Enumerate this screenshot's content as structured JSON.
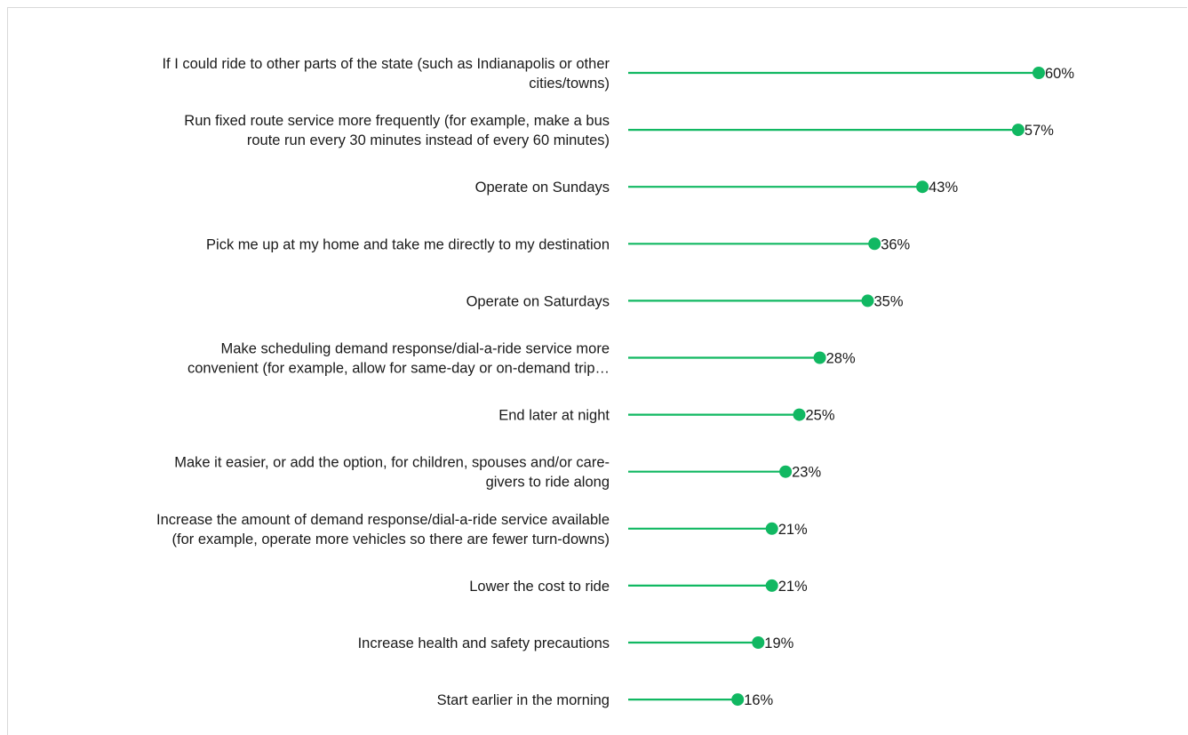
{
  "colors": {
    "accent": "#11b862",
    "text": "#1a1a1a",
    "frame": "#d9d9d9"
  },
  "chart_data": {
    "type": "lollipop",
    "orientation": "horizontal",
    "value_unit": "%",
    "xlim": [
      0,
      60
    ],
    "grid": false,
    "legend": "none",
    "categories": [
      [
        "If I could ride to other parts of the state (such as Indianapolis or other",
        "cities/towns)"
      ],
      [
        "Run fixed route service more frequently (for example, make a bus",
        "route run every 30 minutes instead of every 60 minutes)"
      ],
      [
        "Operate on Sundays"
      ],
      [
        "Pick me up at my home and take me directly to my destination"
      ],
      [
        "Operate on Saturdays"
      ],
      [
        "Make scheduling demand response/dial-a-ride service more",
        "convenient (for example, allow for same-day or on-demand trip…"
      ],
      [
        "End later at night"
      ],
      [
        "Make it easier, or add the option, for children, spouses and/or care-",
        "givers to ride along"
      ],
      [
        "Increase the amount of demand response/dial-a-ride service available",
        "(for example, operate more vehicles so there are fewer turn-downs)"
      ],
      [
        "Lower the cost to ride"
      ],
      [
        "Increase health and safety precautions"
      ],
      [
        "Start earlier in the morning"
      ]
    ],
    "values": [
      60,
      57,
      43,
      36,
      35,
      28,
      25,
      23,
      21,
      21,
      19,
      16
    ],
    "value_labels": [
      "60%",
      "57%",
      "43%",
      "36%",
      "35%",
      "28%",
      "25%",
      "23%",
      "21%",
      "21%",
      "19%",
      "16%"
    ]
  }
}
